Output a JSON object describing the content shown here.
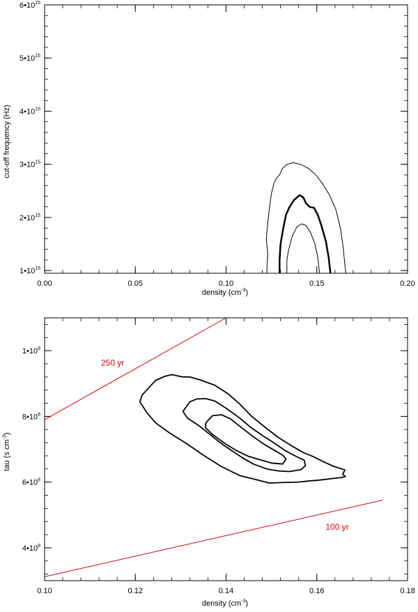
{
  "chart_data": [
    {
      "type": "contour",
      "xlabel": "density (cm",
      "xlabel_sup": "-3",
      "xlabel_tail": ")",
      "ylabel": "cut-off frequency (Hz)",
      "xlim": [
        0.0,
        0.2
      ],
      "ylim": [
        950000000000000.0,
        6000000000000000.0
      ],
      "x_ticks": [
        {
          "value": 0.0,
          "label": "0.00"
        },
        {
          "value": 0.05,
          "label": "0.05"
        },
        {
          "value": 0.1,
          "label": "0.10"
        },
        {
          "value": 0.15,
          "label": "0.15"
        },
        {
          "value": 0.2,
          "label": "0.20"
        }
      ],
      "y_ticks": [
        {
          "value": 1000000000000000.0,
          "mant": "1",
          "base": "10",
          "exp": "15"
        },
        {
          "value": 2000000000000000.0,
          "mant": "2",
          "base": "10",
          "exp": "15"
        },
        {
          "value": 3000000000000000.0,
          "mant": "3",
          "base": "10",
          "exp": "15"
        },
        {
          "value": 4000000000000000.0,
          "mant": "4",
          "base": "10",
          "exp": "15"
        },
        {
          "value": 5000000000000000.0,
          "mant": "5",
          "base": "10",
          "exp": "15"
        },
        {
          "value": 6000000000000000.0,
          "mant": "6",
          "base": "10",
          "exp": "15"
        }
      ],
      "x_minor_step": 0.01,
      "y_minor_step": 200000000000000.0,
      "contours": [
        {
          "level": "outer",
          "stroke": "#000000",
          "width": 1,
          "points": [
            [
              0.1225,
              950000000000000.0
            ],
            [
              0.1225,
              1050000000000000.0
            ],
            [
              0.123,
              1300000000000000.0
            ],
            [
              0.1222,
              1600000000000000.0
            ],
            [
              0.123,
              1900000000000000.0
            ],
            [
              0.124,
              2200000000000000.0
            ],
            [
              0.125,
              2450000000000000.0
            ],
            [
              0.1265,
              2650000000000000.0
            ],
            [
              0.128,
              2750000000000000.0
            ],
            [
              0.1295,
              2800000000000000.0
            ],
            [
              0.131,
              2920000000000000.0
            ],
            [
              0.1335,
              3000000000000000.0
            ],
            [
              0.137,
              3030000000000000.0
            ],
            [
              0.141,
              3000000000000000.0
            ],
            [
              0.1455,
              2920000000000000.0
            ],
            [
              0.1495,
              2800000000000000.0
            ],
            [
              0.1535,
              2620000000000000.0
            ],
            [
              0.157,
              2420000000000000.0
            ],
            [
              0.1605,
              2150000000000000.0
            ],
            [
              0.163,
              1800000000000000.0
            ],
            [
              0.1645,
              1450000000000000.0
            ],
            [
              0.1655,
              1100000000000000.0
            ],
            [
              0.166,
              950000000000000.0
            ]
          ]
        },
        {
          "level": "middle",
          "stroke": "#000000",
          "width": 2.5,
          "points": [
            [
              0.1295,
              950000000000000.0
            ],
            [
              0.1295,
              1200000000000000.0
            ],
            [
              0.13,
              1500000000000000.0
            ],
            [
              0.1315,
              1800000000000000.0
            ],
            [
              0.133,
              2050000000000000.0
            ],
            [
              0.135,
              2200000000000000.0
            ],
            [
              0.1375,
              2330000000000000.0
            ],
            [
              0.1405,
              2420000000000000.0
            ],
            [
              0.1425,
              2380000000000000.0
            ],
            [
              0.144,
              2270000000000000.0
            ],
            [
              0.146,
              2200000000000000.0
            ],
            [
              0.1485,
              2180000000000000.0
            ],
            [
              0.1505,
              2050000000000000.0
            ],
            [
              0.1525,
              1850000000000000.0
            ],
            [
              0.155,
              1550000000000000.0
            ],
            [
              0.1565,
              1250000000000000.0
            ],
            [
              0.1575,
              950000000000000.0
            ]
          ]
        },
        {
          "level": "inner",
          "stroke": "#000000",
          "width": 1,
          "points": [
            [
              0.1335,
              950000000000000.0
            ],
            [
              0.1335,
              1200000000000000.0
            ],
            [
              0.1345,
              1400000000000000.0
            ],
            [
              0.1365,
              1650000000000000.0
            ],
            [
              0.139,
              1820000000000000.0
            ],
            [
              0.1415,
              1880000000000000.0
            ],
            [
              0.144,
              1850000000000000.0
            ],
            [
              0.1465,
              1720000000000000.0
            ],
            [
              0.149,
              1500000000000000.0
            ],
            [
              0.1505,
              1250000000000000.0
            ],
            [
              0.1515,
              950000000000000.0
            ]
          ]
        }
      ]
    },
    {
      "type": "contour",
      "xlabel": "density (cm",
      "xlabel_sup": "-3",
      "xlabel_tail": ")",
      "ylabel": "tau (s cm",
      "ylabel_sup": "-3",
      "ylabel_tail": ")",
      "xlim": [
        0.1,
        0.18
      ],
      "ylim": [
        300000000.0,
        1100000000.0
      ],
      "x_ticks": [
        {
          "value": 0.1,
          "label": "0.10"
        },
        {
          "value": 0.12,
          "label": "0.12"
        },
        {
          "value": 0.14,
          "label": "0.14"
        },
        {
          "value": 0.16,
          "label": "0.16"
        },
        {
          "value": 0.18,
          "label": "0.18"
        }
      ],
      "y_ticks": [
        {
          "value": 400000000.0,
          "mant": "4",
          "base": "10",
          "exp": "8"
        },
        {
          "value": 600000000.0,
          "mant": "6",
          "base": "10",
          "exp": "8"
        },
        {
          "value": 800000000.0,
          "mant": "8",
          "base": "10",
          "exp": "8"
        },
        {
          "value": 1000000000.0,
          "mant": "1",
          "base": "10",
          "exp": "9"
        }
      ],
      "x_minor_step": 0.004,
      "y_minor_step": 40000000.0,
      "lines": [
        {
          "label": "250 yr",
          "color": "#dd0000",
          "points": [
            [
              0.1,
              790000000.0
            ],
            [
              0.14,
              1100000000.0
            ]
          ]
        },
        {
          "label": "100 yr",
          "color": "#dd0000",
          "points": [
            [
              0.1,
              312000000.0
            ],
            [
              0.1745,
              545000000.0
            ]
          ]
        }
      ],
      "annotations": [
        {
          "text": "250 yr",
          "x": 0.115,
          "y": 955000000.0,
          "color": "#dd0000"
        },
        {
          "text": "100 yr",
          "x": 0.1645,
          "y": 455000000.0,
          "color": "#dd0000"
        }
      ],
      "contours": [
        {
          "level": "outer",
          "stroke": "#000000",
          "width": 1.8,
          "points": [
            [
              0.1215,
              865000000.0
            ],
            [
              0.1245,
              910000000.0
            ],
            [
              0.1265,
              922000000.0
            ],
            [
              0.128,
              927000000.0
            ],
            [
              0.1305,
              920000000.0
            ],
            [
              0.132,
              920000000.0
            ],
            [
              0.1345,
              910000000.0
            ],
            [
              0.1375,
              895000000.0
            ],
            [
              0.1405,
              868000000.0
            ],
            [
              0.143,
              838000000.0
            ],
            [
              0.1455,
              802000000.0
            ],
            [
              0.1485,
              768000000.0
            ],
            [
              0.1515,
              736000000.0
            ],
            [
              0.1545,
              710000000.0
            ],
            [
              0.157,
              690000000.0
            ],
            [
              0.159,
              679000000.0
            ],
            [
              0.1618,
              660000000.0
            ],
            [
              0.1637,
              648000000.0
            ],
            [
              0.1662,
              637000000.0
            ],
            [
              0.1657,
              624000000.0
            ],
            [
              0.1663,
              617000000.0
            ],
            [
              0.1655,
              614000000.0
            ],
            [
              0.163,
              610000000.0
            ],
            [
              0.1605,
              606000000.0
            ],
            [
              0.158,
              603000000.0
            ],
            [
              0.156,
              600000000.0
            ],
            [
              0.153,
              599000000.0
            ],
            [
              0.1495,
              597000000.0
            ],
            [
              0.1465,
              608000000.0
            ],
            [
              0.143,
              620000000.0
            ],
            [
              0.139,
              647000000.0
            ],
            [
              0.135,
              682000000.0
            ],
            [
              0.131,
              720000000.0
            ],
            [
              0.1275,
              750000000.0
            ],
            [
              0.1245,
              780000000.0
            ],
            [
              0.1225,
              812000000.0
            ],
            [
              0.121,
              845000000.0
            ],
            [
              0.1215,
              865000000.0
            ]
          ]
        },
        {
          "level": "middle",
          "stroke": "#000000",
          "width": 1.8,
          "points": [
            [
              0.1305,
              815000000.0
            ],
            [
              0.132,
              844000000.0
            ],
            [
              0.1335,
              853000000.0
            ],
            [
              0.1355,
              854000000.0
            ],
            [
              0.1375,
              847000000.0
            ],
            [
              0.14,
              825000000.0
            ],
            [
              0.143,
              795000000.0
            ],
            [
              0.1455,
              766000000.0
            ],
            [
              0.148,
              742000000.0
            ],
            [
              0.1505,
              720000000.0
            ],
            [
              0.153,
              696000000.0
            ],
            [
              0.1555,
              678000000.0
            ],
            [
              0.1572,
              667000000.0
            ],
            [
              0.1575,
              650000000.0
            ],
            [
              0.1565,
              638000000.0
            ],
            [
              0.154,
              632000000.0
            ],
            [
              0.1515,
              634000000.0
            ],
            [
              0.149,
              640000000.0
            ],
            [
              0.146,
              655000000.0
            ],
            [
              0.1435,
              675000000.0
            ],
            [
              0.141,
              698000000.0
            ],
            [
              0.1385,
              722000000.0
            ],
            [
              0.136,
              750000000.0
            ],
            [
              0.134,
              772000000.0
            ],
            [
              0.1315,
              795000000.0
            ],
            [
              0.1305,
              815000000.0
            ]
          ]
        },
        {
          "level": "inner",
          "stroke": "#000000",
          "width": 1.8,
          "points": [
            [
              0.1355,
              780000000.0
            ],
            [
              0.137,
              802000000.0
            ],
            [
              0.139,
              805000000.0
            ],
            [
              0.141,
              792000000.0
            ],
            [
              0.1435,
              765000000.0
            ],
            [
              0.146,
              738000000.0
            ],
            [
              0.1485,
              714000000.0
            ],
            [
              0.151,
              694000000.0
            ],
            [
              0.1525,
              682000000.0
            ],
            [
              0.1532,
              670000000.0
            ],
            [
              0.1525,
              655000000.0
            ],
            [
              0.15,
              658000000.0
            ],
            [
              0.148,
              666000000.0
            ],
            [
              0.145,
              678000000.0
            ],
            [
              0.142,
              698000000.0
            ],
            [
              0.1395,
              720000000.0
            ],
            [
              0.137,
              745000000.0
            ],
            [
              0.1355,
              765000000.0
            ],
            [
              0.1355,
              780000000.0
            ]
          ]
        }
      ]
    }
  ]
}
